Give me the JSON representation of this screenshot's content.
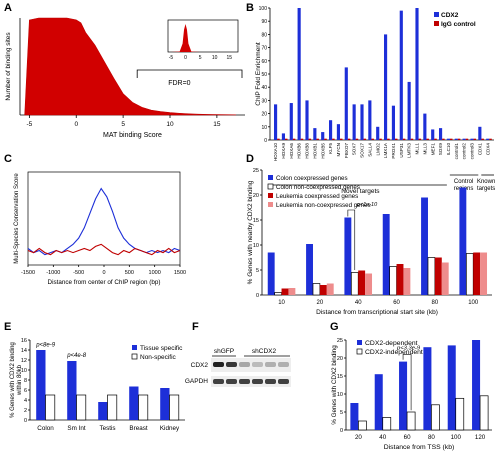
{
  "figure": {
    "panel_letters": [
      "A",
      "B",
      "C",
      "D",
      "E",
      "F",
      "G"
    ]
  },
  "chart_data": [
    {
      "panel": "A",
      "type": "area",
      "xlabel": "MAT binding Score",
      "ylabel": "Number of binding sites",
      "x_ticks": [
        "-5",
        "0",
        "5",
        "10",
        "15"
      ],
      "xlim": [
        -6,
        18
      ],
      "annotation": "FDR=0",
      "series": [
        {
          "x": [
            -5.5,
            -5,
            -4,
            -3,
            -2,
            -1,
            0,
            0.5,
            1,
            2,
            3,
            4,
            5,
            6,
            7,
            8,
            9,
            10,
            11,
            12,
            13,
            14,
            15,
            16,
            17
          ],
          "values": [
            0.0,
            0.98,
            1.0,
            1.0,
            1.0,
            1.0,
            0.98,
            0.95,
            0.85,
            0.72,
            0.55,
            0.38,
            0.22,
            0.13,
            0.08,
            0.05,
            0.035,
            0.025,
            0.018,
            0.012,
            0.008,
            0.006,
            0.004,
            0.003,
            0.002
          ]
        }
      ],
      "inset": {
        "x_ticks": [
          "-5",
          "0",
          "5",
          "10",
          "15"
        ],
        "x": [
          -5,
          -2,
          -1,
          -0.5,
          0,
          0.5,
          1,
          2,
          5,
          15
        ],
        "values": [
          0,
          0.02,
          0.3,
          0.8,
          1,
          0.8,
          0.3,
          0.02,
          0,
          0
        ]
      }
    },
    {
      "panel": "B",
      "type": "bar",
      "ylabel": "ChIP Fold Enrichment",
      "ylim": [
        0,
        100
      ],
      "y_ticks": [
        "0",
        "10",
        "20",
        "30",
        "40",
        "50",
        "60",
        "70",
        "80",
        "90",
        "100"
      ],
      "categories": [
        "HOXA10",
        "HOXA9",
        "HOXA6",
        "HOXB6",
        "HOXB8",
        "HOXB1",
        "HOXB5",
        "KLF5",
        "MYCN",
        "FBXO7",
        "SOX7",
        "SOX17",
        "SALL4",
        "LMO2",
        "LMX1A",
        "PROX1",
        "USP31",
        "LMTK3",
        "MLL1",
        "MLL3",
        "MEF1",
        "SOX9",
        "ILC10",
        "control1",
        "control2",
        "control3",
        "CDX1",
        "CDX4"
      ],
      "legend": [
        "CDX2",
        "IgG control"
      ],
      "series": [
        {
          "name": "CDX2",
          "values": [
            27,
            5,
            28,
            100,
            30,
            9,
            6,
            15,
            12,
            55,
            27,
            27,
            30,
            10,
            80,
            26,
            98,
            44,
            100,
            20,
            8,
            9,
            1,
            1,
            1,
            1,
            10,
            1
          ]
        },
        {
          "name": "IgG control",
          "values": [
            1,
            1,
            1,
            1,
            1,
            1,
            1,
            1,
            1,
            1,
            1,
            1,
            1,
            1,
            1,
            1,
            1,
            1,
            1,
            1,
            1,
            1,
            1,
            1,
            1,
            1,
            1,
            1
          ]
        }
      ],
      "groups": [
        "Novel targets",
        "Control regions",
        "Known targets"
      ]
    },
    {
      "panel": "C",
      "type": "line",
      "xlabel": "Distance from center of ChIP region (bp)",
      "ylabel": "Multi-Species Conservation Score",
      "x_ticks": [
        "-1500",
        "-1000",
        "-500",
        "0",
        "500",
        "1000",
        "1500"
      ],
      "xlim": [
        -1500,
        1500
      ],
      "series": [
        {
          "name": "blue",
          "values": [
            0.18,
            0.16,
            0.17,
            0.15,
            0.16,
            0.17,
            0.16,
            0.18,
            0.2,
            0.23,
            0.28,
            0.35,
            0.42,
            0.47,
            0.43,
            0.36,
            0.28,
            0.23,
            0.2,
            0.18,
            0.17,
            0.16,
            0.17,
            0.16,
            0.17,
            0.16,
            0.18,
            0.17
          ]
        },
        {
          "name": "red",
          "values": [
            0.17,
            0.16,
            0.18,
            0.16,
            0.15,
            0.17,
            0.16,
            0.17,
            0.16,
            0.17,
            0.18,
            0.17,
            0.19,
            0.2,
            0.18,
            0.16,
            0.15,
            0.17,
            0.16,
            0.18,
            0.17,
            0.16,
            0.15,
            0.17,
            0.16,
            0.18,
            0.16,
            0.17
          ]
        }
      ]
    },
    {
      "panel": "D",
      "type": "bar",
      "xlabel": "Distance from transcriptional start site (kb)",
      "ylabel": "% Genes with nearby CDX2 binding",
      "categories": [
        "10",
        "20",
        "40",
        "60",
        "80",
        "100"
      ],
      "ylim": [
        0,
        25
      ],
      "y_ticks": [
        "0",
        "5",
        "10",
        "15",
        "20",
        "25"
      ],
      "legend": [
        "Colon coexpressed genes",
        "Colon non-coexpressed genes",
        "Leukemia coexpressed genes",
        "Leukemia non-coexpressed genes"
      ],
      "series": [
        {
          "name": "Colon coexpressed genes",
          "values": [
            8.5,
            10.2,
            15.5,
            16.2,
            19.5,
            21.5
          ]
        },
        {
          "name": "Colon non-coexpressed genes",
          "values": [
            0.5,
            2.3,
            4.5,
            5.7,
            7.5,
            8.3
          ]
        },
        {
          "name": "Leukemia coexpressed genes",
          "values": [
            1.3,
            2.0,
            4.9,
            6.2,
            7.5,
            8.5
          ]
        },
        {
          "name": "Leukemia non-coexpressed genes",
          "values": [
            1.4,
            2.3,
            4.3,
            5.4,
            6.5,
            8.5
          ]
        }
      ],
      "annotation": "p<1e-10"
    },
    {
      "panel": "E",
      "type": "bar",
      "ylabel": "% Genes with CDX2 binding within 80kb",
      "categories": [
        "Colon",
        "Sm Int",
        "Testis",
        "Breast",
        "Kidney"
      ],
      "ylim": [
        0,
        16
      ],
      "y_ticks": [
        "0",
        "2",
        "4",
        "6",
        "8",
        "10",
        "12",
        "14",
        "16"
      ],
      "legend": [
        "Tissue specific",
        "Non-specific"
      ],
      "series": [
        {
          "name": "Tissue specific",
          "values": [
            14,
            11.8,
            3.6,
            6.7,
            6.4
          ]
        },
        {
          "name": "Non-specific",
          "values": [
            5,
            5,
            5,
            5,
            5
          ]
        }
      ],
      "annotations": [
        "p<8e-9",
        "p<4e-8"
      ]
    },
    {
      "panel": "G",
      "type": "bar",
      "xlabel": "Distance from TSS (kb)",
      "ylabel": "% Genes with CDX2 binding",
      "categories": [
        "20",
        "40",
        "60",
        "80",
        "100",
        "120"
      ],
      "ylim": [
        0,
        25
      ],
      "y_ticks": [
        "0",
        "5",
        "10",
        "15",
        "20",
        "25"
      ],
      "legend": [
        "CDX2-dependent",
        "CDX2-independent"
      ],
      "series": [
        {
          "name": "CDX2-dependent",
          "values": [
            7.5,
            15.5,
            19,
            23,
            23.5,
            25
          ]
        },
        {
          "name": "CDX2-independent",
          "values": [
            2.5,
            3.5,
            5,
            7,
            8.8,
            9.5
          ]
        }
      ],
      "annotation": "p<3.3e-9"
    }
  ],
  "blot": {
    "labels": [
      "shGFP",
      "shCDX2"
    ],
    "rows": [
      "CDX2",
      "GAPDH"
    ]
  }
}
